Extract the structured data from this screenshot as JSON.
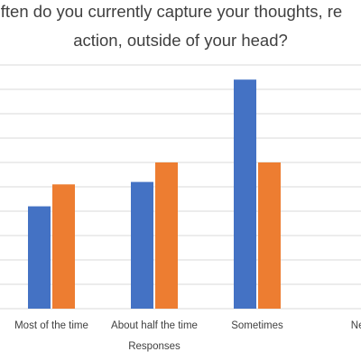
{
  "chart_data": {
    "type": "bar",
    "title_lines": [
      "ften do you currently capture your thoughts, re",
      "action, outside of your head?"
    ],
    "xlabel": "Responses",
    "ylabel": "",
    "categories": [
      "Most of the time",
      "About half the time",
      "Sometimes",
      "Nev"
    ],
    "series": [
      {
        "values": [
          4.2,
          5.2,
          9.4,
          0
        ],
        "color": "#4472C4"
      },
      {
        "values": [
          5.1,
          6.0,
          6.0,
          0
        ],
        "color": "#ED7D31"
      }
    ],
    "ylim": [
      0,
      10
    ],
    "ytick_step": 1,
    "grid": true,
    "gridline_color": "#D9D9D9",
    "legend": false
  }
}
